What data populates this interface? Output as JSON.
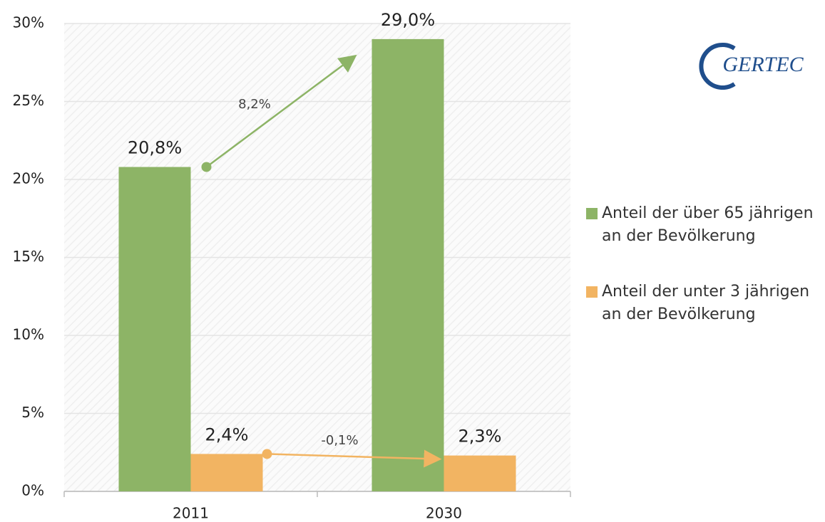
{
  "chart_data": {
    "type": "bar",
    "categories": [
      "2011",
      "2030"
    ],
    "series": [
      {
        "name": "Anteil der über 65 jährigen an der Bevölkerung",
        "color": "#8db466",
        "values": [
          20.8,
          29.0
        ],
        "value_labels": [
          "20,8%",
          "29,0%"
        ]
      },
      {
        "name": "Anteil der unter 3 jährigen an der Bevölkerung",
        "color": "#f2b462",
        "values": [
          2.4,
          2.3
        ],
        "value_labels": [
          "2,4%",
          "2,3%"
        ]
      }
    ],
    "annotations": [
      "8,2%",
      "-0,1%"
    ],
    "ylim": [
      0,
      30
    ],
    "yticks": [
      {
        "value": 0,
        "label": "0%"
      },
      {
        "value": 5,
        "label": "5%"
      },
      {
        "value": 10,
        "label": "10%"
      },
      {
        "value": 15,
        "label": "15%"
      },
      {
        "value": 20,
        "label": "20%"
      },
      {
        "value": 25,
        "label": "25%"
      },
      {
        "value": 30,
        "label": "30%"
      }
    ],
    "grid": true,
    "logo": "GERTEC"
  }
}
